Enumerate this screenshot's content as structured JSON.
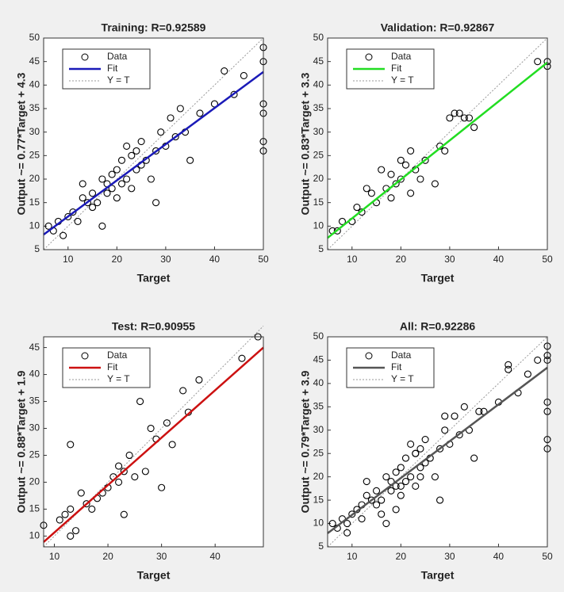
{
  "chart_data": [
    {
      "type": "scatter",
      "title": "Training: R=0.92589",
      "xlabel": "Target",
      "ylabel": "Output ~= 0.77*Target + 4.3",
      "xlim": [
        5,
        50
      ],
      "ylim": [
        5,
        50
      ],
      "xticks": [
        10,
        20,
        30,
        40,
        50
      ],
      "yticks": [
        5,
        10,
        15,
        20,
        25,
        30,
        35,
        40,
        45,
        50
      ],
      "legend": "upper left",
      "series": [
        {
          "name": "Data",
          "type": "scatter",
          "color": "#000000",
          "x": [
            6,
            7,
            8,
            9,
            10,
            11,
            12,
            13,
            14,
            15,
            15,
            16,
            17,
            18,
            18,
            19,
            19,
            20,
            20,
            21,
            21,
            22,
            22,
            23,
            23,
            24,
            24,
            25,
            25,
            26,
            27,
            28,
            29,
            30,
            31,
            32,
            33,
            34,
            35,
            37,
            40,
            42,
            44,
            46,
            50,
            50,
            50,
            50,
            50,
            50,
            28,
            13,
            17
          ],
          "values": [
            10,
            9,
            11,
            8,
            12,
            13,
            11,
            16,
            15,
            14,
            17,
            15,
            20,
            17,
            19,
            18,
            21,
            16,
            22,
            19,
            24,
            20,
            27,
            18,
            25,
            22,
            26,
            23,
            28,
            24,
            20,
            26,
            30,
            27,
            33,
            29,
            35,
            30,
            24,
            34,
            36,
            43,
            38,
            42,
            48,
            45,
            36,
            34,
            28,
            26,
            15,
            19,
            10
          ]
        },
        {
          "name": "Fit",
          "type": "line",
          "color": "#1a1ab8",
          "x": [
            5,
            50
          ],
          "values": [
            8.2,
            42.8
          ]
        },
        {
          "name": "Y = T",
          "type": "line",
          "color": "#999999",
          "dash": true,
          "x": [
            5,
            50
          ],
          "values": [
            5,
            50
          ]
        }
      ]
    },
    {
      "type": "scatter",
      "title": "Validation: R=0.92867",
      "xlabel": "Target",
      "ylabel": "Output ~= 0.83*Target + 3.3",
      "xlim": [
        5,
        50
      ],
      "ylim": [
        5,
        50
      ],
      "xticks": [
        10,
        20,
        30,
        40,
        50
      ],
      "yticks": [
        5,
        10,
        15,
        20,
        25,
        30,
        35,
        40,
        45,
        50
      ],
      "legend": "upper left",
      "series": [
        {
          "name": "Data",
          "type": "scatter",
          "color": "#000000",
          "x": [
            6,
            7,
            8,
            10,
            11,
            12,
            13,
            14,
            15,
            16,
            17,
            18,
            18,
            19,
            20,
            20,
            21,
            22,
            22,
            23,
            24,
            25,
            27,
            28,
            29,
            30,
            31,
            32,
            33,
            34,
            35,
            48,
            50,
            50
          ],
          "values": [
            9,
            9,
            11,
            11,
            14,
            13,
            18,
            17,
            15,
            22,
            18,
            21,
            16,
            19,
            24,
            20,
            23,
            26,
            17,
            22,
            20,
            24,
            19,
            27,
            26,
            33,
            34,
            34,
            33,
            33,
            31,
            45,
            44,
            45
          ]
        },
        {
          "name": "Fit",
          "type": "line",
          "color": "#22dd22",
          "x": [
            5,
            50
          ],
          "values": [
            7.5,
            44.8
          ]
        },
        {
          "name": "Y = T",
          "type": "line",
          "color": "#999999",
          "dash": true,
          "x": [
            5,
            50
          ],
          "values": [
            5,
            50
          ]
        }
      ]
    },
    {
      "type": "scatter",
      "title": "Test: R=0.90955",
      "xlabel": "Target",
      "ylabel": "Output ~= 0.88*Target + 1.9",
      "xlim": [
        8,
        49
      ],
      "ylim": [
        8,
        47
      ],
      "xticks": [
        10,
        20,
        30,
        40
      ],
      "yticks": [
        10,
        15,
        20,
        25,
        30,
        35,
        40,
        45
      ],
      "legend": "upper left",
      "series": [
        {
          "name": "Data",
          "type": "scatter",
          "color": "#000000",
          "x": [
            8,
            11,
            12,
            13,
            13,
            14,
            15,
            16,
            17,
            18,
            19,
            20,
            21,
            22,
            22,
            23,
            23,
            24,
            25,
            26,
            27,
            28,
            29,
            30,
            31,
            32,
            34,
            35,
            37,
            45,
            48,
            13
          ],
          "values": [
            12,
            13,
            14,
            15,
            10,
            11,
            18,
            16,
            15,
            17,
            18,
            19,
            21,
            23,
            20,
            22,
            14,
            25,
            21,
            35,
            22,
            30,
            28,
            19,
            31,
            27,
            37,
            33,
            39,
            43,
            47,
            27
          ]
        },
        {
          "name": "Fit",
          "type": "line",
          "color": "#cc1111",
          "x": [
            8,
            49
          ],
          "values": [
            8.9,
            45
          ]
        },
        {
          "name": "Y = T",
          "type": "line",
          "color": "#999999",
          "dash": true,
          "x": [
            8,
            49
          ],
          "values": [
            8,
            49
          ]
        }
      ]
    },
    {
      "type": "scatter",
      "title": "All: R=0.92286",
      "xlabel": "Target",
      "ylabel": "Output ~= 0.79*Target + 3.9",
      "xlim": [
        5,
        50
      ],
      "ylim": [
        5,
        50
      ],
      "xticks": [
        10,
        20,
        30,
        40,
        50
      ],
      "yticks": [
        5,
        10,
        15,
        20,
        25,
        30,
        35,
        40,
        45,
        50
      ],
      "legend": "upper left",
      "series": [
        {
          "name": "Data",
          "type": "scatter",
          "color": "#000000",
          "x": [
            6,
            7,
            8,
            9,
            10,
            11,
            12,
            13,
            14,
            15,
            15,
            16,
            17,
            18,
            18,
            19,
            19,
            20,
            20,
            21,
            21,
            22,
            22,
            23,
            23,
            24,
            24,
            25,
            25,
            26,
            27,
            28,
            29,
            30,
            31,
            32,
            33,
            34,
            35,
            37,
            40,
            42,
            44,
            46,
            50,
            50,
            50,
            50,
            50,
            50,
            28,
            13,
            17,
            9,
            12,
            16,
            20,
            24,
            29,
            36,
            42,
            48,
            50,
            23,
            19
          ],
          "values": [
            10,
            9,
            11,
            8,
            12,
            13,
            11,
            16,
            15,
            14,
            17,
            15,
            20,
            17,
            19,
            18,
            21,
            16,
            22,
            19,
            24,
            20,
            27,
            18,
            25,
            22,
            26,
            23,
            28,
            24,
            20,
            26,
            30,
            27,
            33,
            29,
            35,
            30,
            24,
            34,
            36,
            43,
            38,
            42,
            48,
            45,
            36,
            34,
            28,
            26,
            15,
            19,
            10,
            10,
            14,
            12,
            18,
            20,
            33,
            34,
            44,
            45,
            46,
            25,
            13
          ]
        },
        {
          "name": "Fit",
          "type": "line",
          "color": "#555555",
          "x": [
            5,
            50
          ],
          "values": [
            7.9,
            43.4
          ]
        },
        {
          "name": "Y = T",
          "type": "line",
          "color": "#999999",
          "dash": true,
          "x": [
            5,
            50
          ],
          "values": [
            5,
            50
          ]
        }
      ]
    }
  ]
}
